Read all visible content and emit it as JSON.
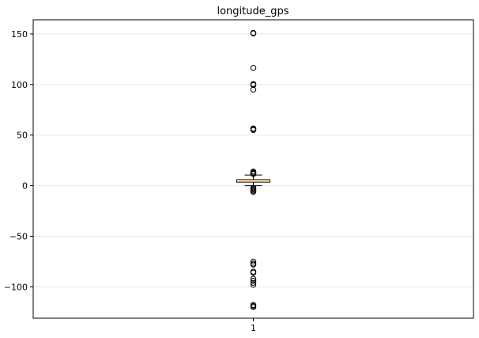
{
  "chart_data": {
    "type": "boxplot",
    "title": "longitude_gps",
    "xlabel": "",
    "ylabel": "",
    "categories": [
      "1"
    ],
    "ylim": [
      -131,
      164
    ],
    "yticks": [
      -100,
      -50,
      0,
      50,
      100,
      150
    ],
    "ytick_labels": [
      "−100",
      "−50",
      "0",
      "50",
      "100",
      "150"
    ],
    "grid": true,
    "box": {
      "q1": 3.5,
      "median": 5.5,
      "q3": 6.0,
      "whisker_low": 0.0,
      "whisker_high": 10.5
    },
    "outliers": [
      151,
      150.5,
      116.5,
      100.5,
      100,
      99.5,
      95,
      56.5,
      56,
      55,
      14,
      13,
      12.5,
      12,
      11.5,
      -2,
      -3,
      -4,
      -5,
      -6,
      -75,
      -77,
      -78,
      -85,
      -86,
      -92,
      -94,
      -96,
      -98,
      -118,
      -119,
      -120
    ],
    "colors": {
      "box": "#000000",
      "median": "#ff7f0e",
      "grid": "#e8e8e8",
      "flier_accent": "#ff7f0e"
    }
  }
}
